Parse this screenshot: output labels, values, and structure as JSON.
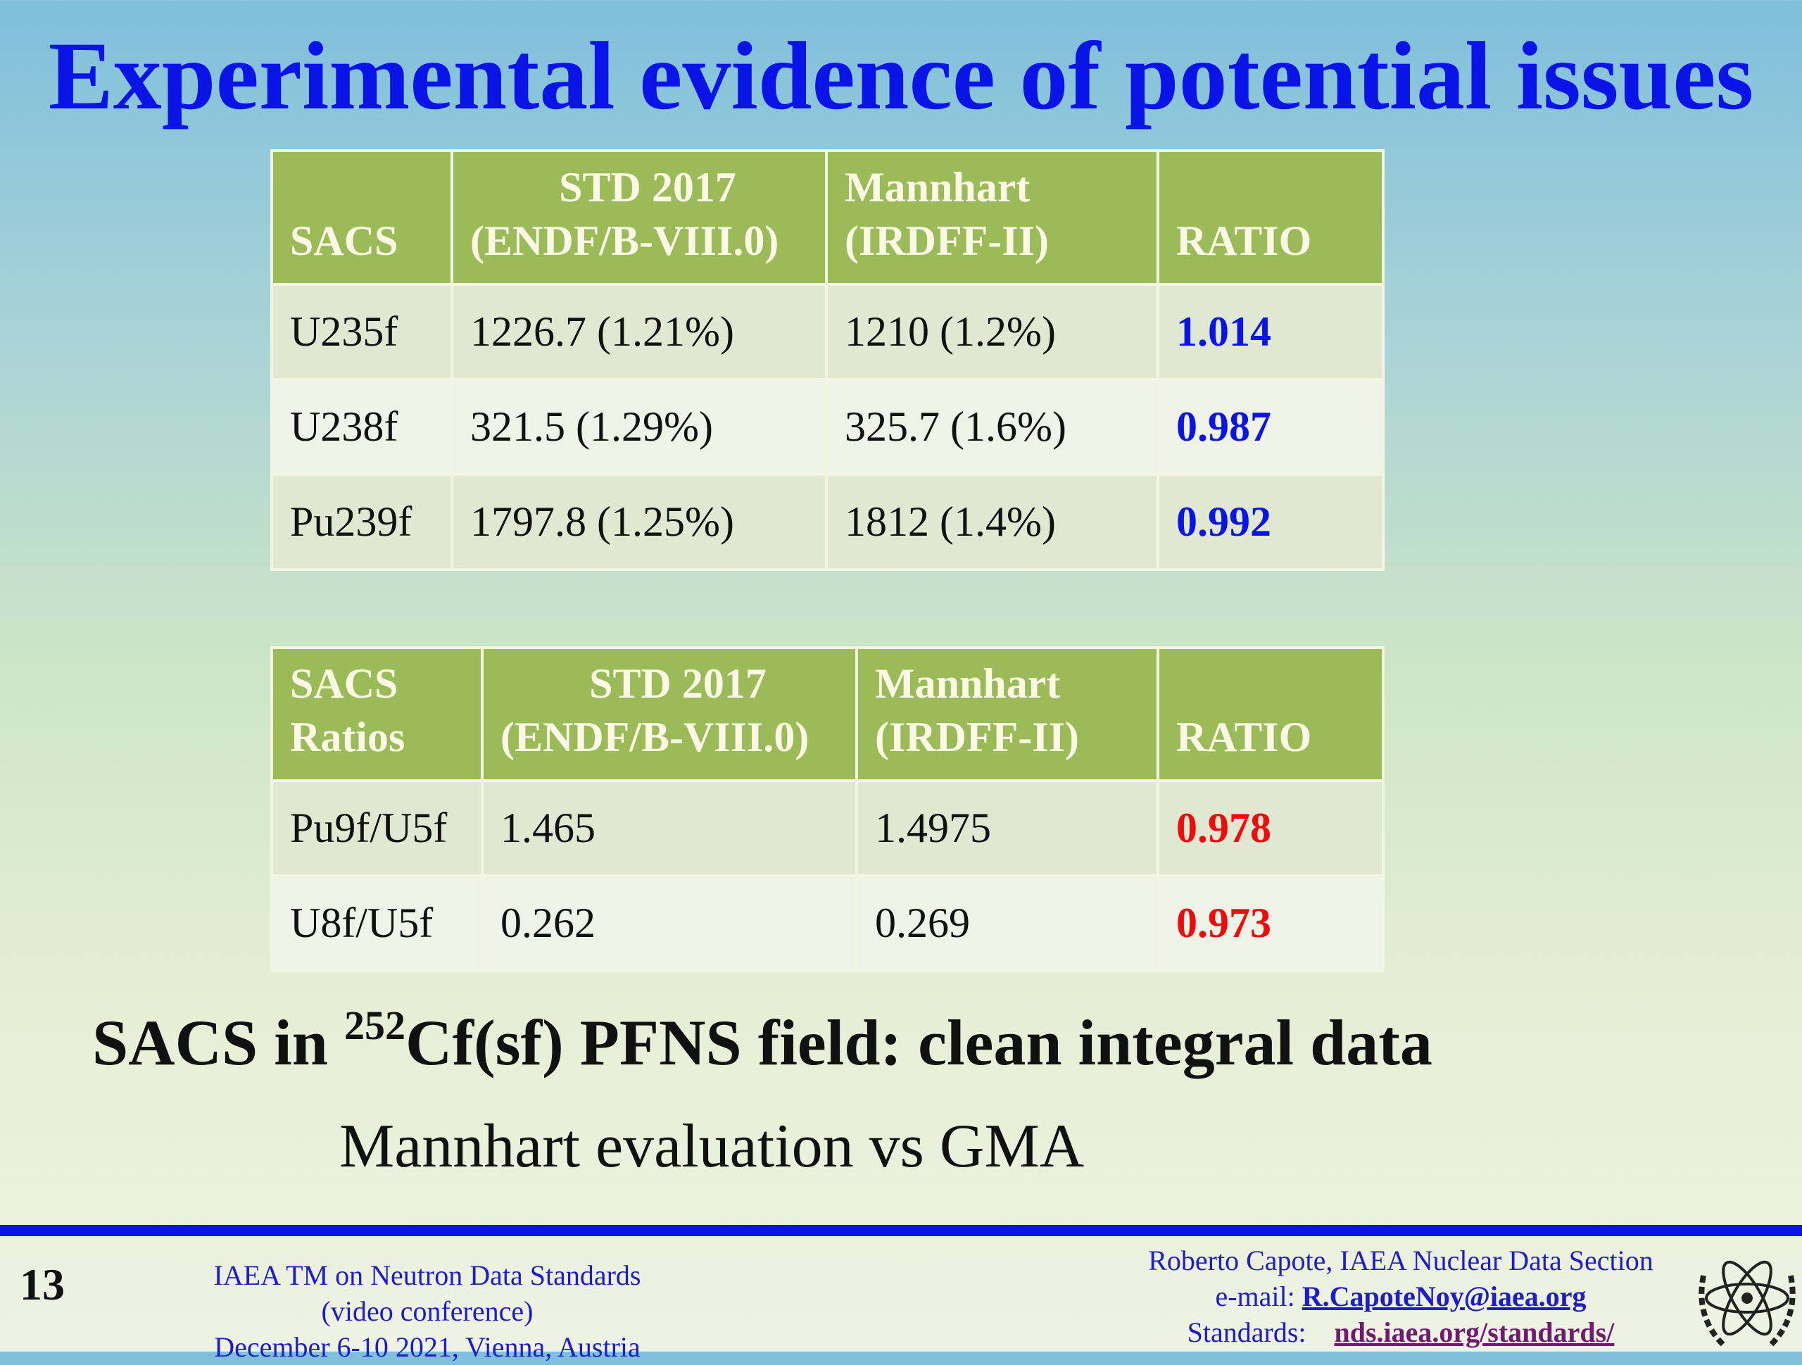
{
  "title": "Experimental evidence of potential issues",
  "tables": [
    {
      "header": [
        [
          "SACS"
        ],
        [
          "STD 2017",
          "(ENDF/B-VIII.0)"
        ],
        [
          "Mannhart",
          "(IRDFF-II)"
        ],
        [
          "RATIO"
        ]
      ],
      "rows": [
        [
          "U235f",
          "1226.7 (1.21%)",
          "1210 (1.2%)",
          "1.014"
        ],
        [
          "U238f",
          "321.5 (1.29%)",
          "325.7 (1.6%)",
          "0.987"
        ],
        [
          "Pu239f",
          "1797.8 (1.25%)",
          "1812 (1.4%)",
          "0.992"
        ]
      ],
      "ratio_color": "#0a14e6"
    },
    {
      "header": [
        [
          "SACS",
          "Ratios"
        ],
        [
          "STD 2017",
          "(ENDF/B-VIII.0)"
        ],
        [
          "Mannhart",
          "(IRDFF-II)"
        ],
        [
          "RATIO"
        ]
      ],
      "rows": [
        [
          "Pu9f/U5f",
          "1.465",
          "1.4975",
          "0.978"
        ],
        [
          "U8f/U5f",
          "0.262",
          "0.269",
          "0.973"
        ]
      ],
      "ratio_color": "#f00a0a"
    }
  ],
  "heading": {
    "before": "SACS in ",
    "superscript": "252",
    "after": "Cf(sf) PFNS field: clean integral data"
  },
  "subtitle": "Mannhart evaluation vs GMA",
  "footer": {
    "page_number": "13",
    "event": [
      "IAEA TM on Neutron Data Standards",
      "(video conference)",
      "December 6-10 2021, Vienna, Austria"
    ],
    "author": "Roberto Capote, IAEA Nuclear Data Section",
    "email_label": "e-mail:",
    "email": "R.CapoteNoy@iaea.org",
    "standards_label": "Standards:",
    "standards_url": "nds.iaea.org/standards/"
  }
}
